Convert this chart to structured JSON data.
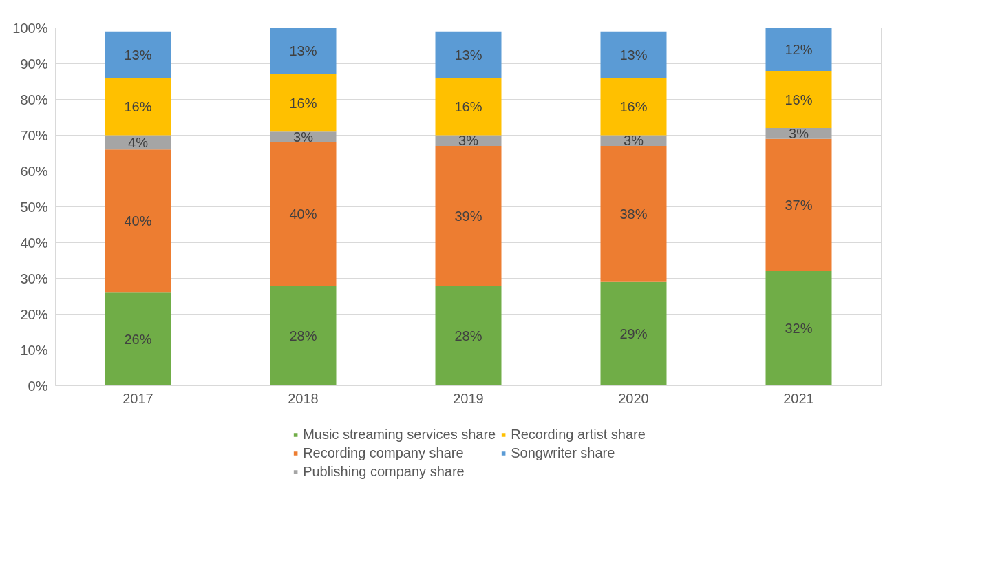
{
  "chart_data": {
    "type": "bar",
    "stacked": true,
    "categories": [
      "2017",
      "2018",
      "2019",
      "2020",
      "2021"
    ],
    "series": [
      {
        "name": "Music streaming services share",
        "color": "#70ad47",
        "values": [
          26,
          28,
          28,
          29,
          32
        ],
        "value_labels": [
          "26%",
          "28%",
          "28%",
          "29%",
          "32%"
        ]
      },
      {
        "name": "Recording company share",
        "color": "#ed7d31",
        "values": [
          40,
          40,
          39,
          38,
          37
        ],
        "value_labels": [
          "40%",
          "40%",
          "39%",
          "38%",
          "37%"
        ]
      },
      {
        "name": "Publishing company share",
        "color": "#a5a5a5",
        "values": [
          4,
          3,
          3,
          3,
          3
        ],
        "value_labels": [
          "4%",
          "3%",
          "3%",
          "3%",
          "3%"
        ]
      },
      {
        "name": "Recording artist share",
        "color": "#ffc000",
        "values": [
          16,
          16,
          16,
          16,
          16
        ],
        "value_labels": [
          "16%",
          "16%",
          "16%",
          "16%",
          "16%"
        ]
      },
      {
        "name": "Songwriter share",
        "color": "#5b9bd5",
        "values": [
          13,
          13,
          13,
          13,
          12
        ],
        "value_labels": [
          "13%",
          "13%",
          "13%",
          "13%",
          "12%"
        ]
      }
    ],
    "ylim": [
      0,
      100
    ],
    "yticks": [
      {
        "value": 0,
        "label": "0%"
      },
      {
        "value": 10,
        "label": "10%"
      },
      {
        "value": 20,
        "label": "20%"
      },
      {
        "value": 30,
        "label": "30%"
      },
      {
        "value": 40,
        "label": "40%"
      },
      {
        "value": 50,
        "label": "50%"
      },
      {
        "value": 60,
        "label": "60%"
      },
      {
        "value": 70,
        "label": "70%"
      },
      {
        "value": 80,
        "label": "80%"
      },
      {
        "value": 90,
        "label": "90%"
      },
      {
        "value": 100,
        "label": "100%"
      }
    ],
    "grid": "y",
    "legend": "bottom"
  }
}
